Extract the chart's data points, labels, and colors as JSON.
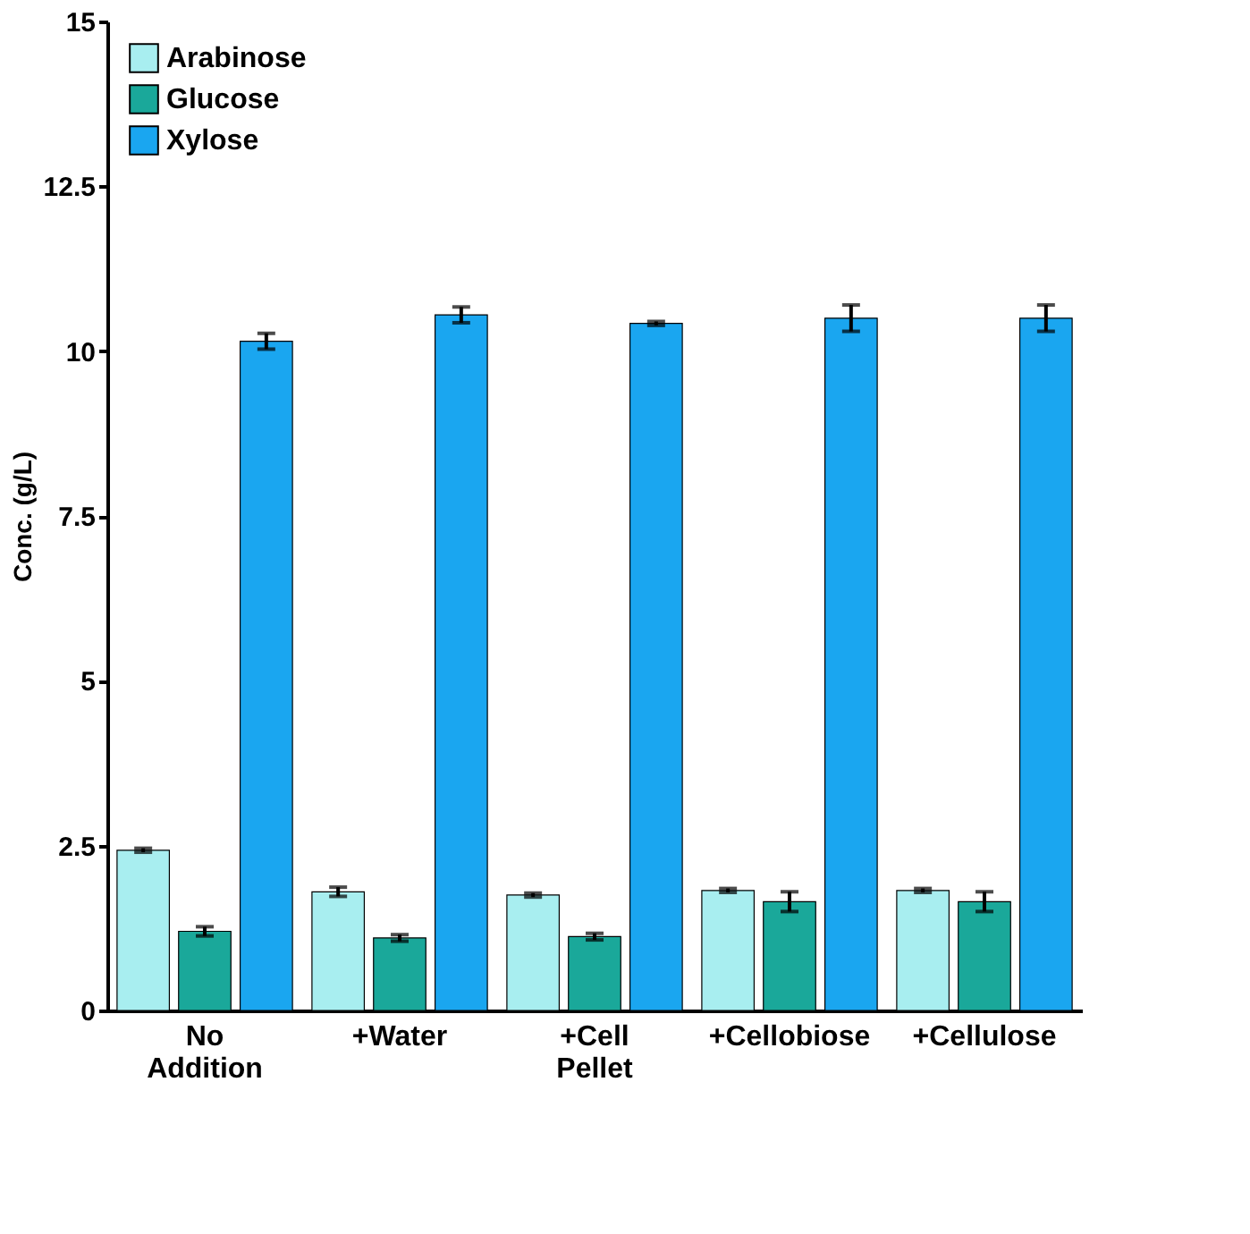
{
  "chart_data": {
    "type": "bar",
    "categories": [
      "No Addition",
      "+Water",
      "+Cell Pellet",
      "+Cellobiose",
      "+Cellulose"
    ],
    "ylabel": "Conc. (g/L)",
    "ylim": [
      0,
      15
    ],
    "yticks": [
      0,
      2.5,
      5,
      7.5,
      10,
      12.5,
      15
    ],
    "grid": false,
    "legend": "top left",
    "series": [
      {
        "name": "Arabinose",
        "color": "#a8eef0",
        "values": [
          2.43,
          1.8,
          1.75,
          1.82,
          1.82
        ],
        "errors": [
          0.03,
          0.07,
          0.03,
          0.03,
          0.03
        ]
      },
      {
        "name": "Glucose",
        "color": "#1aa89a",
        "values": [
          1.2,
          1.1,
          1.12,
          1.65,
          1.65
        ],
        "errors": [
          0.07,
          0.05,
          0.05,
          0.15,
          0.15
        ]
      },
      {
        "name": "Xylose",
        "color": "#1aa6f0",
        "values": [
          10.15,
          10.55,
          10.42,
          10.5,
          10.5
        ],
        "errors": [
          0.12,
          0.12,
          0.03,
          0.2,
          0.2
        ]
      }
    ]
  }
}
